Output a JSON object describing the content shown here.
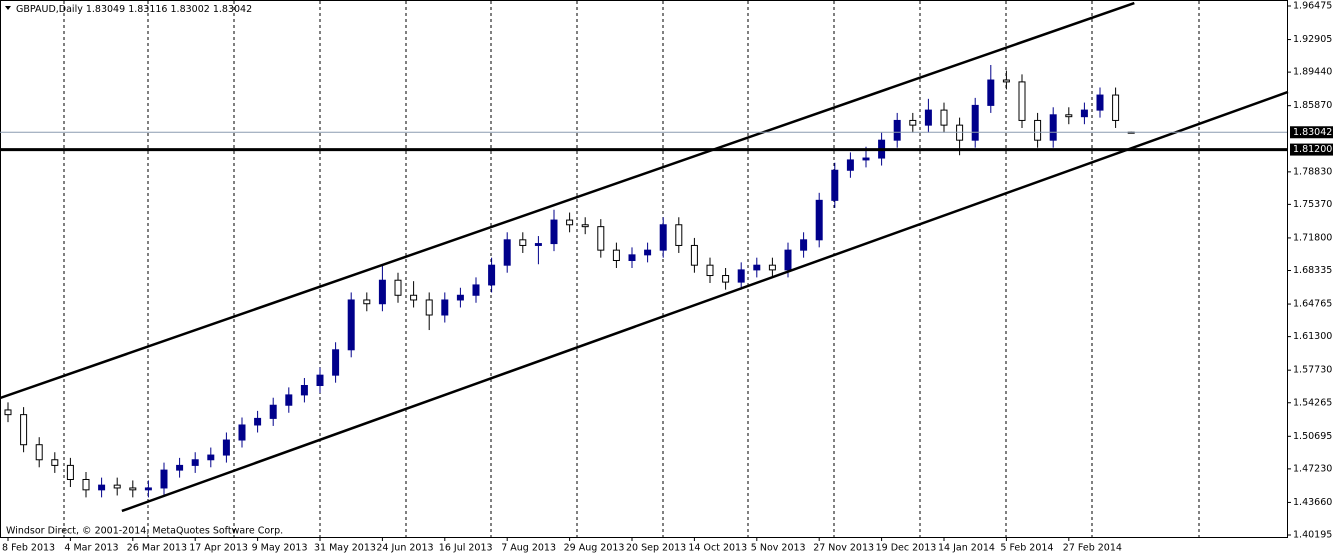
{
  "chart_data": {
    "type": "candlestick",
    "title": "GBPAUD,Daily",
    "footer": "Windsor Direct, © 2001-2014, MetaQuotes Software Corp.",
    "categories": [
      "8 Feb 2013",
      null,
      null,
      null,
      "4 Mar 2013",
      null,
      null,
      null,
      "26 Mar 2013",
      null,
      null,
      null,
      "17 Apr 2013",
      null,
      null,
      null,
      "9 May 2013",
      null,
      null,
      null,
      "31 May 2013",
      null,
      null,
      null,
      "24 Jun 2013",
      null,
      null,
      null,
      "16 Jul 2013",
      null,
      null,
      null,
      "7 Aug 2013",
      null,
      null,
      null,
      "29 Aug 2013",
      null,
      null,
      null,
      "20 Sep 2013",
      null,
      null,
      null,
      "14 Oct 2013",
      null,
      null,
      null,
      "5 Nov 2013",
      null,
      null,
      null,
      "27 Nov 2013",
      null,
      null,
      null,
      "19 Dec 2013",
      null,
      null,
      null,
      "14 Jan 2014",
      null,
      null,
      null,
      "5 Feb 2014",
      null,
      null,
      null,
      "27 Feb 2014",
      null,
      null,
      null,
      null
    ],
    "open": [
      1.535,
      1.53,
      1.498,
      1.482,
      1.476,
      1.461,
      1.45,
      1.455,
      1.452,
      1.45,
      1.452,
      1.471,
      1.476,
      1.482,
      1.487,
      1.503,
      1.519,
      1.526,
      1.54,
      1.551,
      1.561,
      1.572,
      1.599,
      1.652,
      1.648,
      1.673,
      1.657,
      1.652,
      1.636,
      1.652,
      1.657,
      1.668,
      1.689,
      1.716,
      1.71,
      1.712,
      1.737,
      1.732,
      1.73,
      1.705,
      1.694,
      1.7,
      1.705,
      1.732,
      1.71,
      1.689,
      1.678,
      1.671,
      1.684,
      1.689,
      1.684,
      1.705,
      1.716,
      1.758,
      1.79,
      1.801,
      1.803,
      1.822,
      1.843,
      1.838,
      1.854,
      1.838,
      1.822,
      1.859,
      1.886,
      1.884,
      1.843,
      1.822,
      1.849,
      1.847,
      1.854,
      1.87,
      1.83049
    ],
    "high": [
      1.543,
      1.538,
      1.506,
      1.49,
      1.484,
      1.469,
      1.463,
      1.463,
      1.46,
      1.46,
      1.479,
      1.484,
      1.49,
      1.495,
      1.511,
      1.527,
      1.534,
      1.548,
      1.559,
      1.569,
      1.58,
      1.607,
      1.66,
      1.66,
      1.69,
      1.681,
      1.672,
      1.66,
      1.66,
      1.665,
      1.676,
      1.697,
      1.724,
      1.724,
      1.72,
      1.748,
      1.745,
      1.74,
      1.738,
      1.713,
      1.708,
      1.713,
      1.74,
      1.74,
      1.718,
      1.697,
      1.686,
      1.692,
      1.697,
      1.697,
      1.713,
      1.724,
      1.766,
      1.798,
      1.809,
      1.815,
      1.83,
      1.851,
      1.851,
      1.866,
      1.862,
      1.846,
      1.867,
      1.902,
      1.896,
      1.892,
      1.851,
      1.857,
      1.857,
      1.862,
      1.878,
      1.878,
      1.83116
    ],
    "low": [
      1.522,
      1.49,
      1.474,
      1.468,
      1.453,
      1.442,
      1.442,
      1.444,
      1.442,
      1.442,
      1.444,
      1.463,
      1.468,
      1.474,
      1.479,
      1.495,
      1.511,
      1.518,
      1.532,
      1.543,
      1.553,
      1.564,
      1.591,
      1.64,
      1.64,
      1.649,
      1.644,
      1.62,
      1.628,
      1.644,
      1.649,
      1.66,
      1.681,
      1.702,
      1.69,
      1.704,
      1.724,
      1.722,
      1.697,
      1.686,
      1.686,
      1.692,
      1.697,
      1.702,
      1.681,
      1.67,
      1.663,
      1.663,
      1.676,
      1.676,
      1.676,
      1.697,
      1.708,
      1.75,
      1.782,
      1.793,
      1.795,
      1.814,
      1.83,
      1.83,
      1.83,
      1.806,
      1.814,
      1.851,
      1.876,
      1.835,
      1.814,
      1.814,
      1.839,
      1.839,
      1.846,
      1.835,
      1.83002
    ],
    "close": [
      1.53,
      1.498,
      1.482,
      1.476,
      1.461,
      1.45,
      1.455,
      1.452,
      1.45,
      1.452,
      1.471,
      1.476,
      1.482,
      1.487,
      1.503,
      1.519,
      1.526,
      1.54,
      1.551,
      1.561,
      1.572,
      1.599,
      1.652,
      1.648,
      1.673,
      1.657,
      1.652,
      1.636,
      1.652,
      1.657,
      1.668,
      1.689,
      1.716,
      1.71,
      1.712,
      1.737,
      1.732,
      1.73,
      1.705,
      1.694,
      1.7,
      1.705,
      1.732,
      1.71,
      1.689,
      1.678,
      1.671,
      1.684,
      1.689,
      1.684,
      1.705,
      1.716,
      1.758,
      1.79,
      1.801,
      1.803,
      1.822,
      1.843,
      1.838,
      1.854,
      1.838,
      1.822,
      1.859,
      1.886,
      1.884,
      1.843,
      1.822,
      1.849,
      1.847,
      1.854,
      1.87,
      1.843,
      1.83042
    ],
    "up_color": "#00008b",
    "down_color": "#000000",
    "ylim": [
      1.40195,
      1.96475
    ],
    "yticks": [
      1.96475,
      1.92905,
      {
        "value": 1.8944,
        "label": "1.89440"
      },
      {
        "value": 1.8587,
        "label": "1.85870"
      },
      {
        "value": 1.7883,
        "label": "1.78830"
      },
      {
        "value": 1.7537,
        "label": "1.75370"
      },
      {
        "value": 1.718,
        "label": "1.71800"
      },
      1.68335,
      1.64765,
      {
        "value": 1.613,
        "label": "1.61300"
      },
      {
        "value": 1.5773,
        "label": "1.57730"
      },
      1.54265,
      1.50695,
      {
        "value": 1.4723,
        "label": "1.47230"
      },
      {
        "value": 1.4366,
        "label": "1.43660"
      },
      1.40195
    ],
    "support_level": {
      "value": 1.812,
      "label": "1.81200"
    },
    "trendlines": [
      {
        "x": [
          -0.5,
          72.2
        ],
        "y": [
          1.5477,
          1.9679
        ]
      },
      {
        "x": [
          7.3,
          82.05
        ],
        "y": [
          1.4275,
          1.8733
        ]
      }
    ]
  }
}
